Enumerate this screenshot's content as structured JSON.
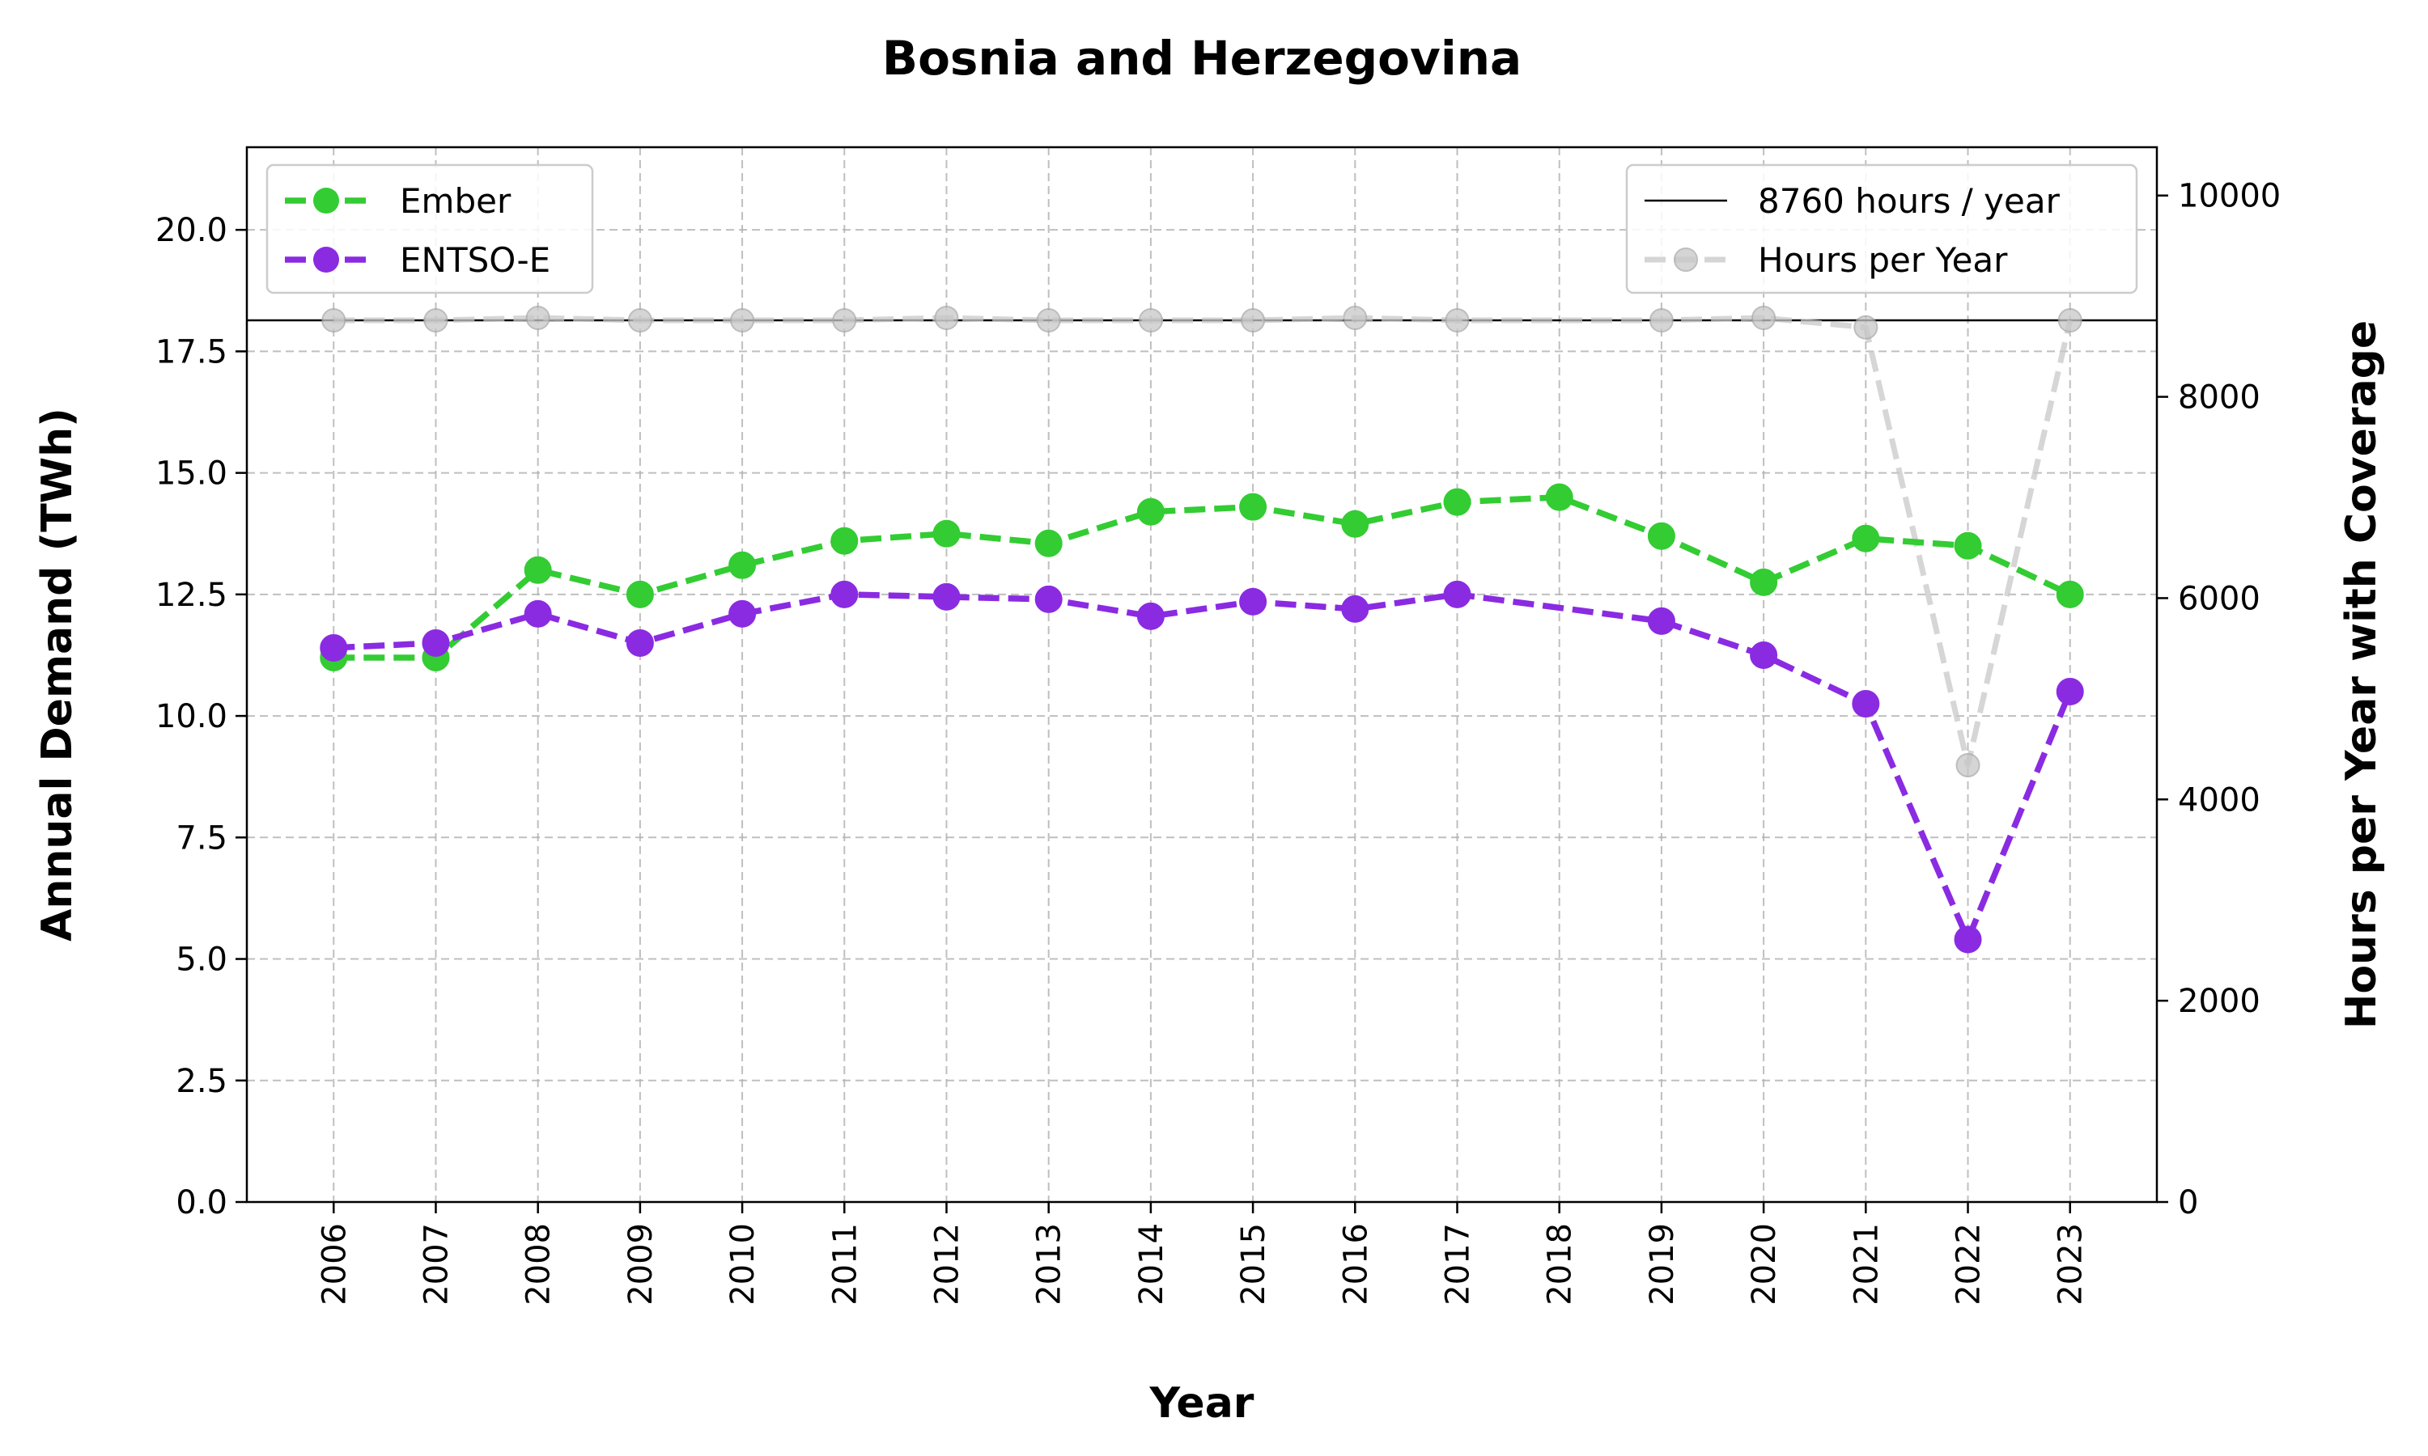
{
  "chart_data": {
    "type": "line",
    "title": "Bosnia and Herzegovina",
    "xlabel": "Year",
    "ylabel": "Annual Demand (TWh)",
    "ylabel_right": "Hours per Year with Coverage",
    "categories": [
      "2006",
      "2007",
      "2008",
      "2009",
      "2010",
      "2011",
      "2012",
      "2013",
      "2014",
      "2015",
      "2016",
      "2017",
      "2018",
      "2019",
      "2020",
      "2021",
      "2022",
      "2023"
    ],
    "ylim": [
      0,
      21.7
    ],
    "yticks": [
      "0.0",
      "2.5",
      "5.0",
      "7.5",
      "10.0",
      "12.5",
      "15.0",
      "17.5",
      "20.0"
    ],
    "ylim_right": [
      0,
      10480
    ],
    "yticks_right": [
      "0",
      "2000",
      "4000",
      "6000",
      "8000",
      "10000"
    ],
    "grid": true,
    "series": [
      {
        "name": "Ember",
        "axis": "left",
        "color": "#33cc33",
        "values": [
          11.2,
          11.2,
          13.0,
          12.5,
          13.1,
          13.6,
          13.75,
          13.55,
          14.2,
          14.3,
          13.95,
          14.4,
          14.5,
          13.7,
          12.75,
          13.65,
          13.5,
          12.5
        ]
      },
      {
        "name": "ENTSO-E",
        "axis": "left",
        "color": "#8a2be2",
        "values": [
          11.4,
          11.5,
          12.1,
          11.5,
          12.1,
          12.5,
          12.45,
          12.4,
          12.05,
          12.35,
          12.2,
          12.5,
          null,
          11.95,
          11.25,
          10.25,
          5.4,
          10.5
        ]
      },
      {
        "name": "Hours per Year",
        "axis": "right",
        "color": "#c8c8c8",
        "values": [
          8760,
          8760,
          8784,
          8760,
          8760,
          8760,
          8784,
          8760,
          8760,
          8760,
          8784,
          8760,
          null,
          8760,
          8784,
          8690,
          4340,
          8760
        ]
      }
    ],
    "reference_line": {
      "name": "8760 hours / year",
      "value": 8760,
      "axis": "right",
      "color": "#000000"
    },
    "legend_left": {
      "position": "upper left",
      "entries": [
        "Ember",
        "ENTSO-E"
      ]
    },
    "legend_right": {
      "position": "upper right",
      "entries": [
        "8760 hours / year",
        "Hours per Year"
      ]
    }
  }
}
